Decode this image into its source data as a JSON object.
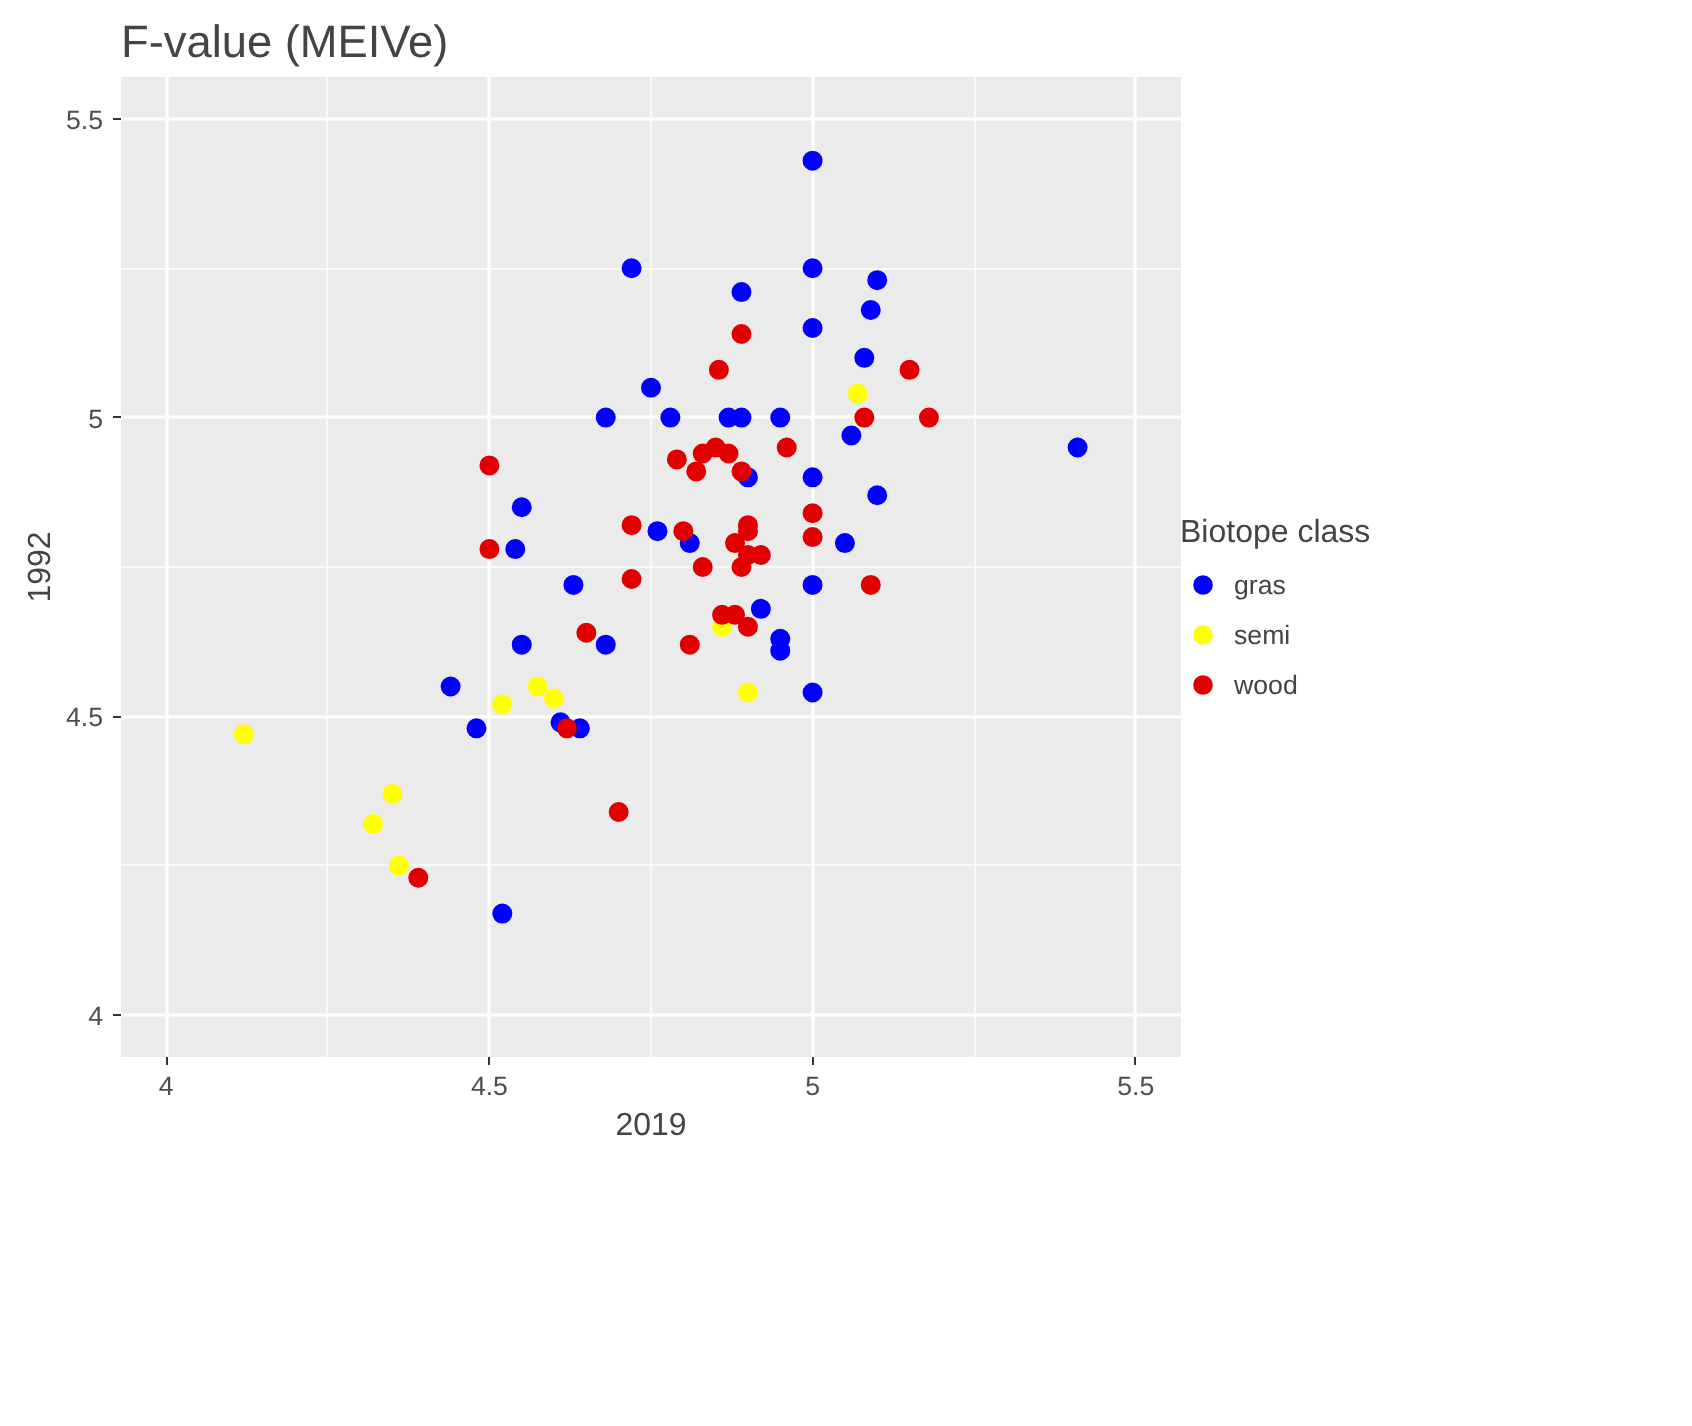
{
  "chart_data": {
    "type": "scatter",
    "title": "F-value (MEIVe)",
    "xlabel": "2019",
    "ylabel": "1992",
    "legend_title": "Biotope class",
    "legend": "right",
    "grid": true,
    "marker": "circle",
    "xlim": [
      3.93,
      5.57
    ],
    "ylim": [
      3.93,
      5.57
    ],
    "xticks": [
      4.0,
      4.5,
      5.0,
      5.5
    ],
    "yticks": [
      4.0,
      4.5,
      5.0,
      5.5
    ],
    "series": [
      {
        "name": "gras",
        "color": "#0000ff",
        "x": [
          5.0,
          4.72,
          5.0,
          4.89,
          5.1,
          5.09,
          5.0,
          5.08,
          4.75,
          4.78,
          4.87,
          4.89,
          4.95,
          5.06,
          5.41,
          4.9,
          5.0,
          5.1,
          4.76,
          4.81,
          5.05,
          5.0,
          4.92,
          4.95,
          4.95,
          5.0,
          4.68,
          4.55,
          4.54,
          4.63,
          4.55,
          4.68,
          4.44,
          4.48,
          4.61,
          4.64,
          4.52
        ],
        "values": [
          5.43,
          5.25,
          5.25,
          5.21,
          5.23,
          5.18,
          5.15,
          5.1,
          5.05,
          5.0,
          5.0,
          5.0,
          5.0,
          4.97,
          4.95,
          4.9,
          4.9,
          4.87,
          4.81,
          4.79,
          4.79,
          4.72,
          4.68,
          4.63,
          4.61,
          4.54,
          5.0,
          4.85,
          4.78,
          4.72,
          4.62,
          4.62,
          4.55,
          4.48,
          4.49,
          4.48,
          4.17
        ]
      },
      {
        "name": "semi",
        "color": "#ffff00",
        "x": [
          5.07,
          4.86,
          4.9,
          4.52,
          4.575,
          4.6,
          4.12,
          4.35,
          4.32,
          4.36
        ],
        "values": [
          5.04,
          4.65,
          4.54,
          4.52,
          4.55,
          4.53,
          4.47,
          4.37,
          4.32,
          4.25
        ]
      },
      {
        "name": "wood",
        "color": "#e00000",
        "x": [
          4.89,
          4.855,
          5.15,
          5.08,
          5.18,
          4.79,
          4.83,
          4.82,
          4.85,
          4.87,
          4.89,
          4.96,
          5.0,
          5.0,
          4.72,
          4.8,
          4.9,
          4.9,
          4.88,
          4.92,
          4.9,
          4.83,
          4.89,
          5.09,
          4.86,
          4.88,
          4.9,
          4.81,
          4.72,
          4.5,
          4.5,
          4.65,
          4.62,
          4.7,
          4.39
        ],
        "values": [
          5.14,
          5.08,
          5.08,
          5.0,
          5.0,
          4.93,
          4.94,
          4.91,
          4.95,
          4.94,
          4.91,
          4.95,
          4.84,
          4.8,
          4.82,
          4.81,
          4.82,
          4.81,
          4.79,
          4.77,
          4.77,
          4.75,
          4.75,
          4.72,
          4.67,
          4.67,
          4.65,
          4.62,
          4.73,
          4.92,
          4.78,
          4.64,
          4.48,
          4.34,
          4.23
        ]
      }
    ]
  }
}
